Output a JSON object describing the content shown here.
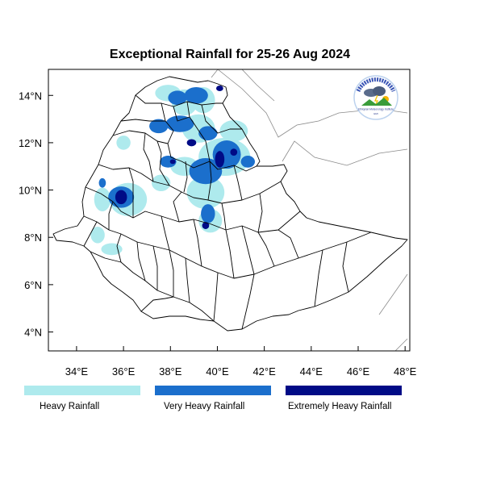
{
  "title": "Exceptional Rainfall for 25-26 Aug 2024",
  "axes": {
    "x_ticks": [
      {
        "value": 34,
        "label": "34°E"
      },
      {
        "value": 36,
        "label": "36°E"
      },
      {
        "value": 38,
        "label": "38°E"
      },
      {
        "value": 40,
        "label": "40°E"
      },
      {
        "value": 42,
        "label": "42°E"
      },
      {
        "value": 44,
        "label": "44°E"
      },
      {
        "value": 46,
        "label": "46°E"
      },
      {
        "value": 48,
        "label": "48°E"
      }
    ],
    "y_ticks": [
      {
        "value": 4,
        "label": "4°N"
      },
      {
        "value": 6,
        "label": "6°N"
      },
      {
        "value": 8,
        "label": "8°N"
      },
      {
        "value": 10,
        "label": "10°N"
      },
      {
        "value": 12,
        "label": "12°N"
      },
      {
        "value": 14,
        "label": "14°N"
      }
    ],
    "lon_range": [
      32.8,
      48.2
    ],
    "lat_range": [
      3.2,
      15.1
    ]
  },
  "legend": [
    {
      "label": "Heavy Rainfall",
      "color": "#aeeaed"
    },
    {
      "label": "Very Heavy Rainfall",
      "color": "#1b6fcc"
    },
    {
      "label": "Extremely Heavy Rainfall",
      "color": "#000b86"
    }
  ],
  "colors": {
    "heavy": "#aeeaed",
    "very_heavy": "#1b6fcc",
    "extreme": "#000b86",
    "border": "#000000",
    "neighbor_border": "#8a8a8a"
  },
  "logo": {
    "name": "meteorology-agency-logo",
    "top_text": "የኢትዮጵያ ሜትዎሮሎጂ ኢንስቲትዩት",
    "bottom_text": "Ethiopian Meteorology Institute",
    "small_text": "EMI"
  },
  "rain_patches": [
    {
      "level": "heavy",
      "lon": 37.9,
      "lat": 14.1,
      "rx": 0.55,
      "ry": 0.35
    },
    {
      "level": "heavy",
      "lon": 38.6,
      "lat": 13.7,
      "rx": 0.55,
      "ry": 0.55
    },
    {
      "level": "heavy",
      "lon": 39.4,
      "lat": 13.8,
      "rx": 0.5,
      "ry": 0.55
    },
    {
      "level": "heavy",
      "lon": 39.2,
      "lat": 12.6,
      "rx": 0.7,
      "ry": 0.6
    },
    {
      "level": "heavy",
      "lon": 40.7,
      "lat": 12.5,
      "rx": 0.6,
      "ry": 0.45
    },
    {
      "level": "heavy",
      "lon": 40.3,
      "lat": 11.4,
      "rx": 1.1,
      "ry": 0.8
    },
    {
      "level": "heavy",
      "lon": 38.6,
      "lat": 11.0,
      "rx": 0.6,
      "ry": 0.4
    },
    {
      "level": "heavy",
      "lon": 39.5,
      "lat": 9.9,
      "rx": 0.8,
      "ry": 0.7
    },
    {
      "level": "heavy",
      "lon": 36.2,
      "lat": 9.6,
      "rx": 0.8,
      "ry": 0.7
    },
    {
      "level": "heavy",
      "lon": 35.1,
      "lat": 9.6,
      "rx": 0.35,
      "ry": 0.5
    },
    {
      "level": "heavy",
      "lon": 34.9,
      "lat": 8.1,
      "rx": 0.3,
      "ry": 0.35
    },
    {
      "level": "heavy",
      "lon": 35.5,
      "lat": 7.5,
      "rx": 0.45,
      "ry": 0.25
    },
    {
      "level": "heavy",
      "lon": 39.7,
      "lat": 8.7,
      "rx": 0.5,
      "ry": 0.5
    },
    {
      "level": "heavy",
      "lon": 37.6,
      "lat": 10.3,
      "rx": 0.4,
      "ry": 0.35
    },
    {
      "level": "heavy",
      "lon": 36.0,
      "lat": 12.0,
      "rx": 0.3,
      "ry": 0.3
    },
    {
      "level": "very_heavy",
      "lon": 38.3,
      "lat": 13.9,
      "rx": 0.4,
      "ry": 0.3
    },
    {
      "level": "very_heavy",
      "lon": 39.1,
      "lat": 14.0,
      "rx": 0.5,
      "ry": 0.35
    },
    {
      "level": "very_heavy",
      "lon": 38.4,
      "lat": 12.8,
      "rx": 0.6,
      "ry": 0.35
    },
    {
      "level": "very_heavy",
      "lon": 37.5,
      "lat": 12.7,
      "rx": 0.4,
      "ry": 0.3
    },
    {
      "level": "very_heavy",
      "lon": 39.6,
      "lat": 12.4,
      "rx": 0.4,
      "ry": 0.3
    },
    {
      "level": "very_heavy",
      "lon": 40.4,
      "lat": 11.5,
      "rx": 0.6,
      "ry": 0.6
    },
    {
      "level": "very_heavy",
      "lon": 39.5,
      "lat": 10.8,
      "rx": 0.7,
      "ry": 0.55
    },
    {
      "level": "very_heavy",
      "lon": 35.9,
      "lat": 9.7,
      "rx": 0.55,
      "ry": 0.45
    },
    {
      "level": "very_heavy",
      "lon": 37.9,
      "lat": 11.2,
      "rx": 0.35,
      "ry": 0.25
    },
    {
      "level": "very_heavy",
      "lon": 39.6,
      "lat": 9.0,
      "rx": 0.3,
      "ry": 0.4
    },
    {
      "level": "very_heavy",
      "lon": 41.3,
      "lat": 11.2,
      "rx": 0.3,
      "ry": 0.25
    },
    {
      "level": "very_heavy",
      "lon": 35.1,
      "lat": 10.3,
      "rx": 0.15,
      "ry": 0.2
    },
    {
      "level": "extreme",
      "lon": 40.1,
      "lat": 14.3,
      "rx": 0.15,
      "ry": 0.12
    },
    {
      "level": "extreme",
      "lon": 38.9,
      "lat": 12.0,
      "rx": 0.2,
      "ry": 0.15
    },
    {
      "level": "extreme",
      "lon": 40.1,
      "lat": 11.3,
      "rx": 0.2,
      "ry": 0.35
    },
    {
      "level": "extreme",
      "lon": 40.7,
      "lat": 11.6,
      "rx": 0.15,
      "ry": 0.15
    },
    {
      "level": "extreme",
      "lon": 35.9,
      "lat": 9.7,
      "rx": 0.25,
      "ry": 0.3
    },
    {
      "level": "extreme",
      "lon": 38.1,
      "lat": 11.2,
      "rx": 0.12,
      "ry": 0.1
    },
    {
      "level": "extreme",
      "lon": 39.5,
      "lat": 8.5,
      "rx": 0.15,
      "ry": 0.15
    }
  ]
}
